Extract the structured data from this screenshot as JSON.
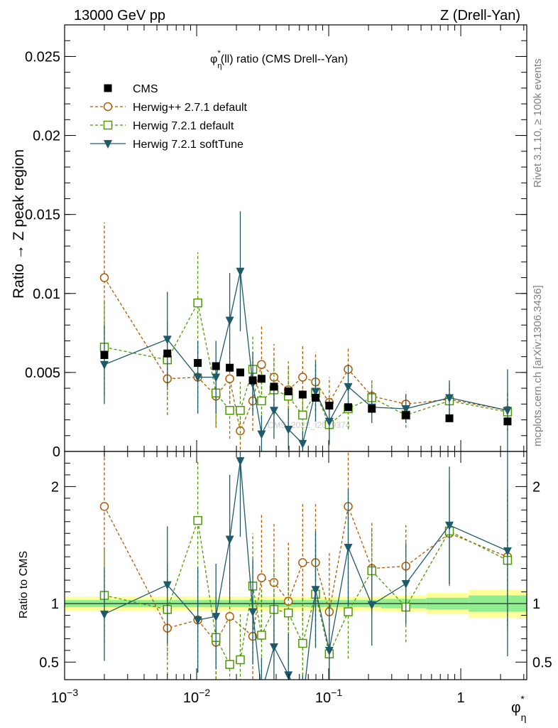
{
  "header": {
    "left": "13000 GeV pp",
    "right": "Z (Drell-Yan)"
  },
  "side_text": {
    "rivet": "Rivet 3.1.10, ≥ 100k events",
    "mcplots": "mcplots.cern.ch [arXiv:1306.3436]"
  },
  "watermark": "CMS_2022_I2079374",
  "upper": {
    "title_pre": "φ",
    "title_sub": "η",
    "title_sup": "*",
    "title_post": "(ll) ratio (CMS Drell--Yan)",
    "ylabel": "Ratio → Z peak region",
    "yticks": [
      "0",
      "0.005",
      "0.01",
      "0.015",
      "0.02",
      "0.025"
    ]
  },
  "lower": {
    "ylabel": "Ratio to CMS",
    "yticks": [
      "0.5",
      "1",
      "2"
    ]
  },
  "xaxis": {
    "label_main": "φ",
    "label_sub": "η",
    "label_sup": "*",
    "ticks": [
      {
        "base": "10",
        "exp": "−3"
      },
      {
        "base": "10",
        "exp": "−2"
      },
      {
        "base": "10",
        "exp": "−1"
      },
      {
        "text": "1"
      }
    ]
  },
  "legend": [
    {
      "label": "CMS",
      "color": "#000000",
      "marker": "square-filled",
      "dashed": false,
      "line": false
    },
    {
      "label": "Herwig++ 2.7.1 default",
      "color": "#b35900",
      "marker": "circle-open",
      "dashed": true,
      "line": true
    },
    {
      "label": "Herwig 7.2.1 default",
      "color": "#4c9900",
      "marker": "square-open",
      "dashed": true,
      "line": true
    },
    {
      "label": "Herwig 7.2.1 softTune",
      "color": "#1f5a6a",
      "marker": "triangle-down",
      "dashed": false,
      "line": true
    }
  ],
  "chart_data": {
    "type": "scatter",
    "x_scale": "log",
    "xlim": [
      0.001,
      3.16
    ],
    "ylim_upper": [
      0,
      0.027
    ],
    "ylim_lower": [
      0.35,
      2.3
    ],
    "x": [
      0.002,
      0.006,
      0.0102,
      0.014,
      0.0178,
      0.0214,
      0.0266,
      0.031,
      0.0385,
      0.0495,
      0.0635,
      0.0795,
      0.101,
      0.1405,
      0.212,
      0.384,
      0.82,
      2.26
    ],
    "series": [
      {
        "name": "CMS",
        "values": [
          0.0061,
          0.0062,
          0.0056,
          0.0054,
          0.0053,
          0.005,
          0.0045,
          0.0046,
          0.0041,
          0.0038,
          0.0036,
          0.0034,
          0.0029,
          0.0028,
          0.0027,
          0.0023,
          0.0021,
          0.0019
        ],
        "ratio": [
          1,
          1,
          1,
          1,
          1,
          1,
          1,
          1,
          1,
          1,
          1,
          1,
          1,
          1,
          1,
          1,
          1,
          1
        ]
      },
      {
        "name": "Herwig++ 2.7.1 default",
        "values": [
          0.011,
          0.0046,
          0.0047,
          0.0035,
          0.0046,
          0.0013,
          0.0032,
          0.0055,
          0.0047,
          0.0039,
          0.0047,
          0.0044,
          0.0031,
          0.0052,
          0.0035,
          0.003,
          0.0033,
          0.0026
        ],
        "err": [
          0.0035,
          0.0023,
          0.0023,
          0.002,
          0.0022,
          0.0015,
          0.0019,
          0.0025,
          0.0021,
          0.0018,
          0.002,
          0.0019,
          0.0016,
          0.0014,
          0.001,
          0.0008,
          0.001,
          0.0013
        ],
        "ratio": [
          1.83,
          0.79,
          0.86,
          0.67,
          0.89,
          null,
          0.72,
          1.22,
          1.18,
          1.02,
          1.35,
          1.35,
          0.93,
          1.83,
          1.3,
          1.32,
          1.6,
          1.4
        ],
        "ratio_err": [
          0.5,
          0.4,
          0.45,
          0.4,
          0.45,
          null,
          0.45,
          0.55,
          0.5,
          0.5,
          0.5,
          0.5,
          0.5,
          0.5,
          0.4,
          0.35,
          0.45,
          0.6
        ]
      },
      {
        "name": "Herwig 7.2.1 default",
        "values": [
          0.0066,
          0.0058,
          0.0094,
          0.0037,
          0.0026,
          0.0026,
          0.0052,
          0.0032,
          0.0039,
          0.0035,
          0.0023,
          0.0037,
          0.0017,
          0.0027,
          0.0034,
          0.0023,
          0.0032,
          0.0025
        ],
        "err": [
          0.003,
          0.0025,
          0.0032,
          0.002,
          0.0018,
          0.0018,
          0.0022,
          0.0018,
          0.002,
          0.0018,
          0.0016,
          0.0018,
          0.0013,
          0.0013,
          0.001,
          0.0008,
          0.001,
          0.0012
        ],
        "ratio": [
          1.07,
          0.95,
          1.71,
          0.71,
          0.48,
          0.52,
          1.15,
          0.73,
          0.95,
          0.92,
          0.66,
          1.08,
          0.57,
          0.93,
          1.28,
          0.97,
          1.62,
          1.37
        ],
        "ratio_err": [
          0.4,
          0.4,
          0.5,
          0.4,
          0.4,
          0.4,
          0.45,
          0.4,
          0.45,
          0.45,
          0.4,
          0.45,
          0.4,
          0.4,
          0.35,
          0.3,
          0.45,
          0.6
        ]
      },
      {
        "name": "Herwig 7.2.1 softTune",
        "values": [
          0.0055,
          0.0071,
          0.0047,
          0.0047,
          0.0083,
          0.0114,
          0.0043,
          0.0011,
          0.0026,
          0.0014,
          0.0005,
          0.0038,
          0.0019,
          0.0041,
          0.0028,
          0.0027,
          0.0034,
          0.0026
        ],
        "err": [
          0.0025,
          0.003,
          0.0023,
          0.0023,
          0.003,
          0.0038,
          0.002,
          0.0012,
          0.0018,
          0.0013,
          0.0008,
          0.0019,
          0.0014,
          0.0014,
          0.001,
          0.0009,
          0.0011,
          0.0026
        ],
        "ratio": [
          0.91,
          1.16,
          0.86,
          0.89,
          1.55,
          2.22,
          0.93,
          0.24,
          0.63,
          0.39,
          0.14,
          1.12,
          0.6,
          1.48,
          0.99,
          1.17,
          1.67,
          1.45
        ],
        "ratio_err": [
          0.4,
          0.5,
          0.45,
          0.45,
          0.55,
          0.65,
          0.45,
          0.3,
          0.4,
          0.35,
          0.25,
          0.5,
          0.4,
          0.5,
          0.35,
          0.35,
          0.5,
          0.9
        ]
      }
    ],
    "cms_band": {
      "x_edges": [
        0.001,
        0.25,
        0.55,
        1.15,
        3.16
      ],
      "inner": [
        0.03,
        0.04,
        0.05,
        0.07
      ],
      "outer": [
        0.06,
        0.07,
        0.09,
        0.12
      ]
    }
  }
}
